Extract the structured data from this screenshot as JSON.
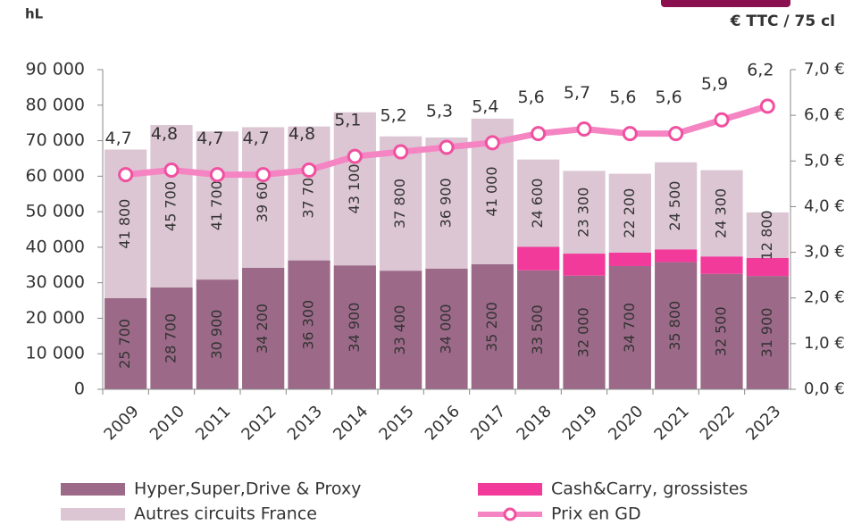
{
  "chart_data": {
    "type": "bar",
    "stacked": true,
    "y_label": "hL",
    "y2_label": "€ TTC / 75 cl",
    "categories": [
      "2009",
      "2010",
      "2011",
      "2012",
      "2013",
      "2014",
      "2015",
      "2016",
      "2017",
      "2018",
      "2019",
      "2020",
      "2021",
      "2022",
      "2023"
    ],
    "series": [
      {
        "name": "Hyper,Super,Drive & Proxy",
        "color": "#9c6a88",
        "values": [
          25700,
          28700,
          30900,
          34200,
          36300,
          34900,
          33400,
          34000,
          35200,
          33500,
          32000,
          34700,
          35800,
          32500,
          31900
        ],
        "value_labels": [
          "25 700",
          "28 700",
          "30 900",
          "34 200",
          "36 300",
          "34 900",
          "33 400",
          "34 000",
          "35 200",
          "33 500",
          "32 000",
          "34 700",
          "35 800",
          "32 500",
          "31 900"
        ]
      },
      {
        "name": "Cash&Carry, grossistes",
        "color": "#f23a9b",
        "values": [
          null,
          null,
          null,
          null,
          null,
          null,
          null,
          null,
          null,
          6600,
          6200,
          3800,
          3600,
          4900,
          5100
        ]
      },
      {
        "name": "Autres circuits France",
        "color": "#dcc6d3",
        "values": [
          41800,
          45700,
          41700,
          39600,
          37700,
          43100,
          37800,
          36900,
          41000,
          24600,
          23300,
          22200,
          24500,
          24300,
          12800
        ],
        "value_labels": [
          "41 800",
          "45 700",
          "41 700",
          "39 600",
          "37 700",
          "43 100",
          "37 800",
          "36 900",
          "41 000",
          "24 600",
          "23 300",
          "22 200",
          "24 500",
          "24 300",
          "12 800"
        ]
      },
      {
        "name": "Prix en GD",
        "type": "line",
        "axis": "y2",
        "color": "#f584c3",
        "values": [
          4.7,
          4.8,
          4.7,
          4.7,
          4.8,
          5.1,
          5.2,
          5.3,
          5.4,
          5.6,
          5.7,
          5.6,
          5.6,
          5.9,
          6.2
        ],
        "value_labels": [
          "4,7",
          "4,8",
          "4,7",
          "4,7",
          "4,8",
          "5,1",
          "5,2",
          "5,3",
          "5,4",
          "5,6",
          "5,7",
          "5,6",
          "5,6",
          "5,9",
          "6,2"
        ]
      }
    ],
    "ylim": [
      0,
      90000
    ],
    "yticks": [
      0,
      {
        "value": 10000,
        "label": "10 000"
      },
      {
        "value": 20000,
        "label": "20 000"
      },
      {
        "value": 30000,
        "label": "30 000"
      },
      {
        "value": 40000,
        "label": "40 000"
      },
      {
        "value": 50000,
        "label": "50 000"
      },
      {
        "value": 60000,
        "label": "60 000"
      },
      {
        "value": 70000,
        "label": "70 000"
      },
      {
        "value": 80000,
        "label": "80 000"
      },
      {
        "value": 90000,
        "label": "90 000"
      }
    ],
    "y2lim": [
      0,
      7
    ],
    "y2ticks": [
      {
        "value": 0,
        "label": "0,0 €"
      },
      {
        "value": 1,
        "label": "1,0 €"
      },
      {
        "value": 2,
        "label": "2,0 €"
      },
      {
        "value": 3,
        "label": "3,0 €"
      },
      {
        "value": 4,
        "label": "4,0 €"
      },
      {
        "value": 5,
        "label": "5,0 €"
      },
      {
        "value": 6,
        "label": "6,0 €"
      },
      {
        "value": 7,
        "label": "7,0 €"
      }
    ]
  }
}
